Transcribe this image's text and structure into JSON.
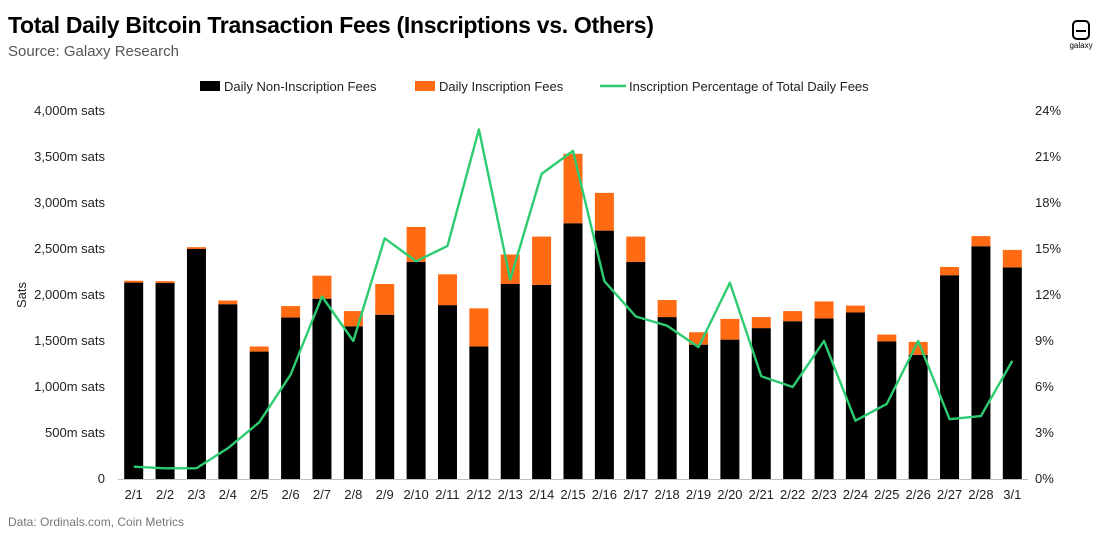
{
  "title": "Total Daily Bitcoin Transaction Fees (Inscriptions vs. Others)",
  "subtitle": "Source: Galaxy Research",
  "footer": "Data: Ordinals.com, Coin Metrics",
  "logo_text": "galaxy",
  "colors": {
    "non_inscription": "#000000",
    "inscription": "#ff6a13",
    "line": "#2ecc71",
    "axis": "#bfbfbf"
  },
  "chart_data": {
    "type": "bar",
    "stacked": true,
    "title": "Total Daily Bitcoin Transaction Fees (Inscriptions vs. Others)",
    "xlabel": "",
    "ylabel": "Sats",
    "ylim": [
      0,
      4000
    ],
    "y2lim": [
      0,
      24
    ],
    "y_ticks": [
      0,
      500,
      1000,
      1500,
      2000,
      2500,
      3000,
      3500,
      4000
    ],
    "y_tick_labels": [
      "0",
      "500m sats",
      "1,000m sats",
      "1,500m sats",
      "2,000m sats",
      "2,500m sats",
      "3,000m sats",
      "3,500m sats",
      "4,000m sats"
    ],
    "y2_ticks": [
      0,
      3,
      6,
      9,
      12,
      15,
      18,
      21,
      24
    ],
    "y2_tick_labels": [
      "0%",
      "3%",
      "6%",
      "9%",
      "12%",
      "15%",
      "18%",
      "21%",
      "24%"
    ],
    "categories": [
      "2/1",
      "2/2",
      "2/3",
      "2/4",
      "2/5",
      "2/6",
      "2/7",
      "2/8",
      "2/9",
      "2/10",
      "2/11",
      "2/12",
      "2/13",
      "2/14",
      "2/15",
      "2/16",
      "2/17",
      "2/18",
      "2/19",
      "2/20",
      "2/21",
      "2/22",
      "2/23",
      "2/24",
      "2/25",
      "2/26",
      "2/27",
      "2/28",
      "3/1"
    ],
    "series": [
      {
        "name": "Daily Non-Inscription Fees",
        "kind": "bar",
        "axis": "left",
        "values": [
          2135,
          2130,
          2500,
          1900,
          1385,
          1755,
          1960,
          1660,
          1785,
          2360,
          1890,
          1440,
          2120,
          2110,
          2780,
          2700,
          2360,
          1760,
          1460,
          1515,
          1640,
          1715,
          1745,
          1810,
          1495,
          1350,
          2215,
          2530,
          2300
        ]
      },
      {
        "name": "Daily Inscription Fees",
        "kind": "bar",
        "axis": "left",
        "values": [
          20,
          20,
          20,
          40,
          55,
          125,
          250,
          165,
          335,
          380,
          335,
          415,
          320,
          525,
          755,
          410,
          275,
          185,
          135,
          225,
          120,
          110,
          185,
          75,
          75,
          140,
          90,
          110,
          190
        ]
      },
      {
        "name": "Inscription Percentage of Total Daily Fees",
        "kind": "line",
        "axis": "right",
        "values": [
          0.8,
          0.7,
          0.7,
          2.0,
          3.7,
          6.8,
          11.9,
          9.0,
          15.7,
          14.2,
          15.2,
          22.8,
          13.0,
          19.9,
          21.4,
          12.9,
          10.6,
          10.0,
          8.6,
          12.8,
          6.7,
          6.0,
          9.0,
          3.8,
          4.9,
          9.0,
          3.9,
          4.1,
          7.7
        ]
      }
    ],
    "legend_position": "top"
  }
}
